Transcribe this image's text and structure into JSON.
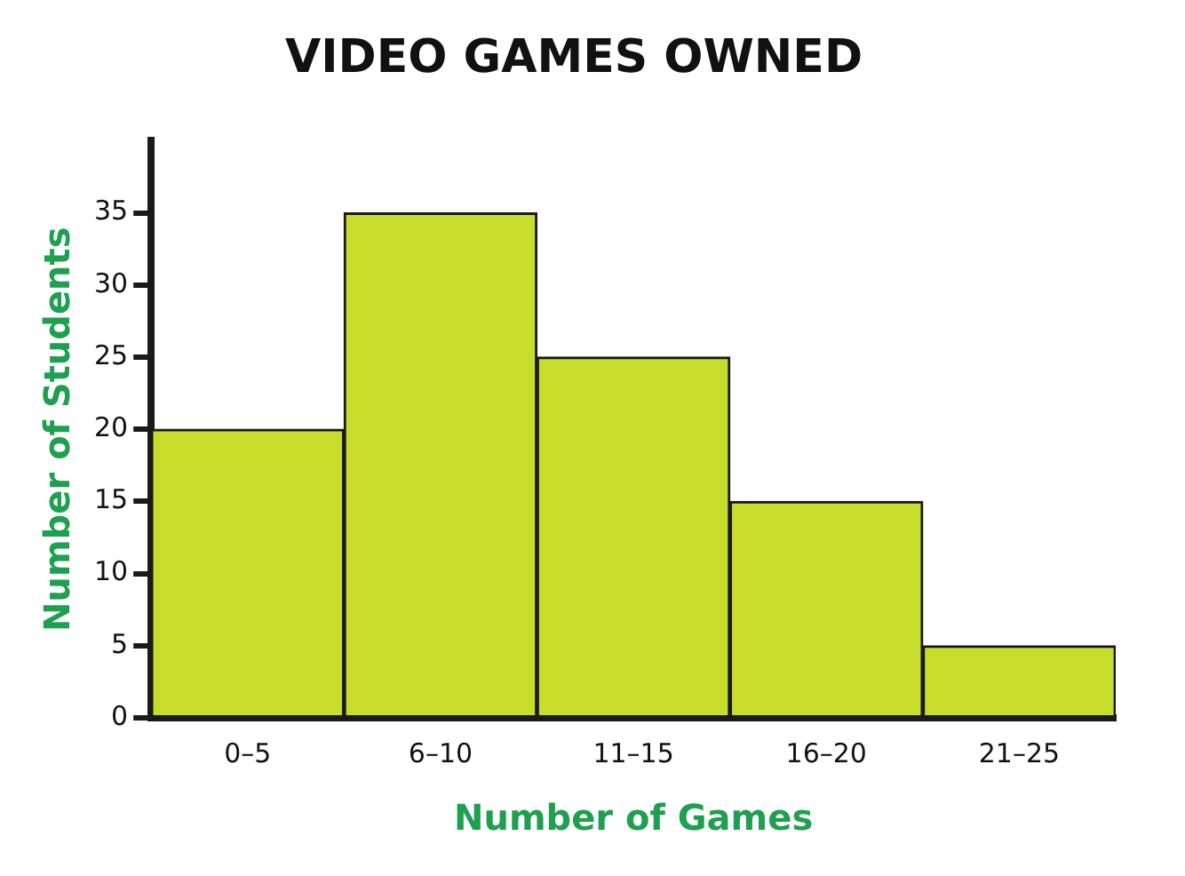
{
  "chart_data": {
    "type": "bar",
    "title": "VIDEO GAMES OWNED",
    "xlabel": "Number of Games",
    "ylabel": "Number of Students",
    "categories": [
      "0–5",
      "6–10",
      "11–15",
      "16–20",
      "21–25"
    ],
    "values": [
      20,
      35,
      25,
      15,
      5
    ],
    "color": "#c8dc2c",
    "ylim": [
      0,
      40
    ],
    "yticks": [
      0,
      5,
      10,
      15,
      20,
      25,
      30,
      35
    ],
    "grid": false,
    "legend": false
  }
}
